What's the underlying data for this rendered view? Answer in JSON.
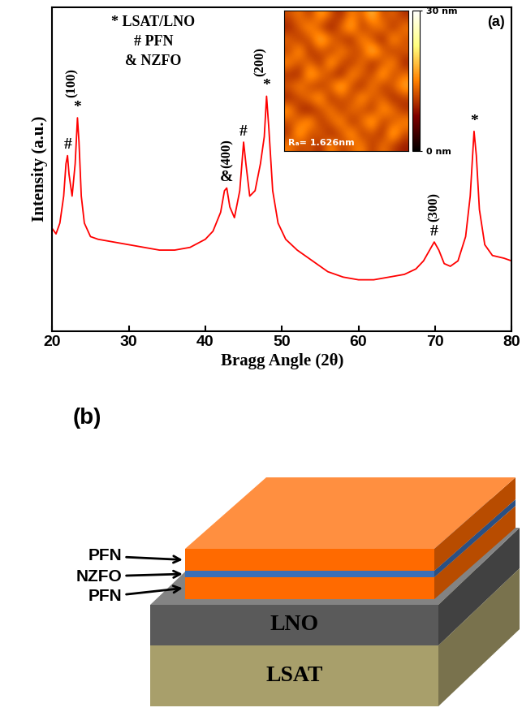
{
  "chart_data": {
    "type": "line",
    "x_label": "Bragg Angle (2θ)",
    "y_label": "Intensity (a.u.)",
    "panel_label": "(a)",
    "key": [
      "* LSAT/LNO",
      "# PFN",
      "& NZFO"
    ],
    "x": [
      20,
      20.5,
      21,
      21.5,
      21.8,
      22.0,
      22.2,
      22.6,
      23.0,
      23.3,
      23.5,
      23.8,
      24.2,
      25,
      26,
      28,
      30,
      32,
      34,
      36,
      38,
      40,
      41,
      42,
      42.5,
      42.8,
      43.2,
      43.8,
      44.5,
      45.0,
      45.3,
      45.8,
      46.5,
      47.2,
      47.7,
      48.0,
      48.3,
      48.8,
      49.5,
      50.5,
      52,
      54,
      56,
      58,
      60,
      62,
      64,
      66,
      67.5,
      68.5,
      69.3,
      69.9,
      70.5,
      71.2,
      72,
      73,
      74,
      74.6,
      75.1,
      75.4,
      75.8,
      76.5,
      77.5,
      79,
      80
    ],
    "values": [
      38,
      36,
      40,
      50,
      62,
      65,
      58,
      50,
      62,
      79,
      70,
      50,
      40,
      35,
      34,
      33,
      32,
      31,
      30,
      30,
      31,
      34,
      37,
      44,
      52,
      53,
      46,
      42,
      52,
      70,
      62,
      50,
      52,
      62,
      72,
      87,
      75,
      52,
      40,
      34,
      30,
      26,
      22,
      20,
      19,
      19,
      20,
      21,
      23,
      26,
      30,
      33,
      30,
      25,
      24,
      26,
      35,
      50,
      74,
      65,
      45,
      32,
      28,
      27,
      26
    ],
    "color": "#ff0000",
    "xlim": [
      20,
      80
    ],
    "xticks": [
      20,
      30,
      40,
      50,
      60,
      70,
      80
    ],
    "ylim": [
      0,
      120
    ],
    "tick_labels": "x",
    "peaks": [
      {
        "x": 22.0,
        "symbol": "#"
      },
      {
        "x": 23.3,
        "symbol": "*"
      },
      {
        "x": 42.8,
        "symbol": "&"
      },
      {
        "x": 45.0,
        "symbol": "#"
      },
      {
        "x": 48.0,
        "symbol": "*"
      },
      {
        "x": 69.9,
        "symbol": "#"
      },
      {
        "x": 75.1,
        "symbol": "*"
      }
    ],
    "hkl_labels": [
      {
        "x": 22.6,
        "text": "(100)"
      },
      {
        "x": 42.8,
        "text": "(400)"
      },
      {
        "x": 47.2,
        "text": "(200)"
      },
      {
        "x": 69.9,
        "text": "(300)"
      }
    ],
    "inset": {
      "roughness_label": "Rₐ= 1.626nm",
      "color_range": [
        0,
        30
      ],
      "color_ticks": [
        {
          "value": 0,
          "label": "0 nm"
        },
        {
          "value": 30,
          "label": "30 nm"
        }
      ],
      "cells": [
        [
          12,
          15,
          10,
          18,
          13,
          9,
          16,
          12,
          20,
          11,
          14,
          10
        ],
        [
          9,
          13,
          17,
          11,
          8,
          14,
          19,
          10,
          13,
          16,
          9,
          15
        ],
        [
          14,
          10,
          12,
          20,
          15,
          11,
          9,
          17,
          12,
          8,
          18,
          12
        ],
        [
          11,
          18,
          9,
          13,
          10,
          16,
          13,
          11,
          21,
          14,
          10,
          13
        ],
        [
          16,
          12,
          14,
          9,
          19,
          12,
          10,
          15,
          9,
          12,
          17,
          9
        ],
        [
          10,
          9,
          19,
          15,
          11,
          8,
          17,
          13,
          11,
          19,
          11,
          14
        ],
        [
          13,
          16,
          11,
          10,
          14,
          20,
          12,
          9,
          16,
          10,
          13,
          18
        ],
        [
          9,
          12,
          15,
          18,
          9,
          13,
          11,
          18,
          12,
          14,
          9,
          11
        ],
        [
          17,
          10,
          8,
          12,
          16,
          10,
          15,
          12,
          10,
          17,
          15,
          10
        ],
        [
          12,
          14,
          18,
          10,
          13,
          17,
          9,
          14,
          19,
          11,
          12,
          16
        ],
        [
          10,
          19,
          11,
          14,
          9,
          12,
          18,
          10,
          13,
          9,
          20,
          12
        ],
        [
          15,
          11,
          13,
          9,
          17,
          11,
          13,
          16,
          10,
          15,
          11,
          9
        ]
      ]
    }
  },
  "diagram": {
    "panel_label": "(b)",
    "substrate": [
      {
        "label": "LSAT",
        "color": "#a89f6b"
      },
      {
        "label": "LNO",
        "color": "#5a5a5a"
      }
    ],
    "film": [
      {
        "label": "PFN",
        "color": "#ff6a00"
      },
      {
        "label": "NZFO",
        "color": "#3b6fb6"
      },
      {
        "label": "PFN",
        "color": "#ff6a00"
      }
    ]
  }
}
